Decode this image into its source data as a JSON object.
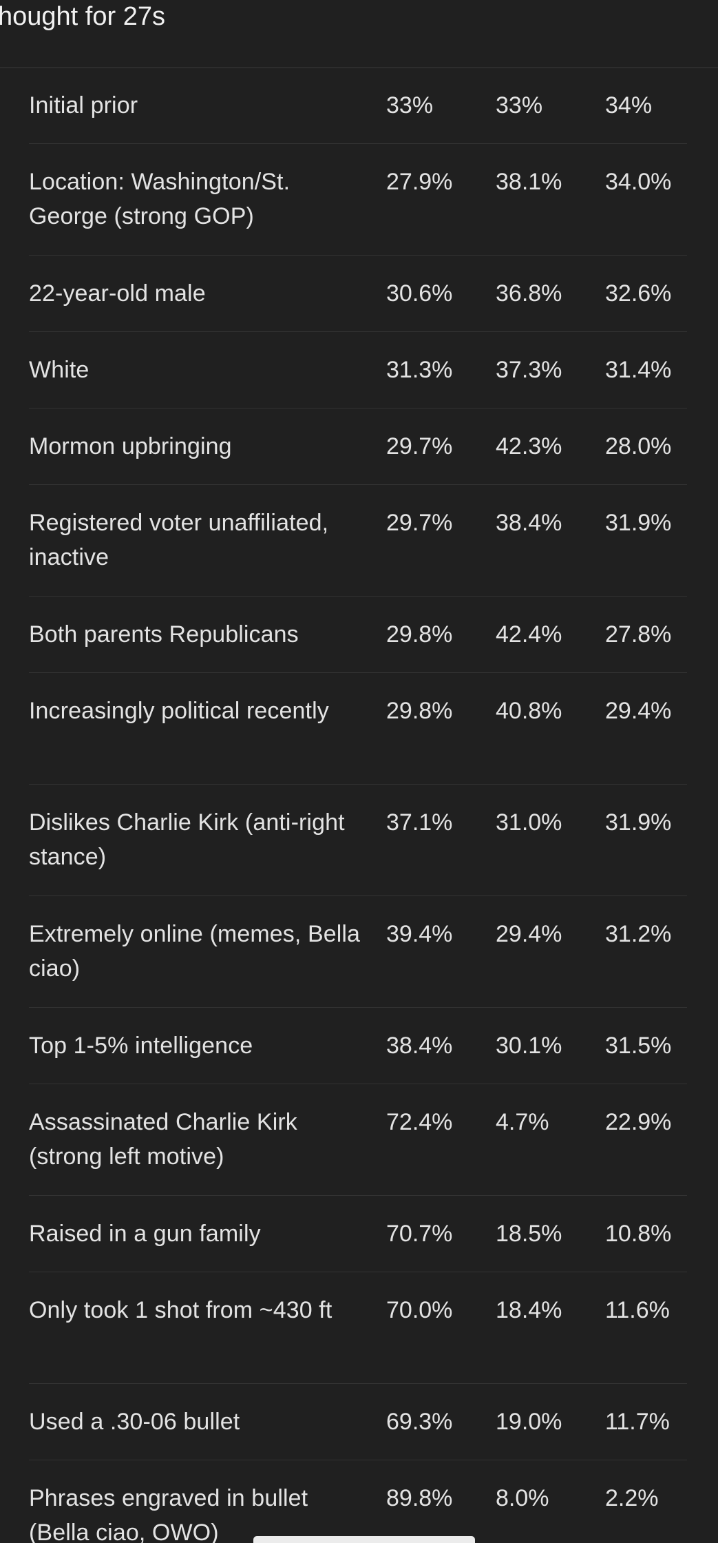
{
  "header": {
    "title": "hought for 27s"
  },
  "table": {
    "rows": [
      {
        "label": "Initial prior",
        "values": [
          "33%",
          "33%",
          "34%"
        ],
        "height": "short"
      },
      {
        "label": "Location: Washington/St. George (strong GOP)",
        "values": [
          "27.9%",
          "38.1%",
          "34.0%"
        ],
        "height": "tall"
      },
      {
        "label": "22-year-old male",
        "values": [
          "30.6%",
          "36.8%",
          "32.6%"
        ],
        "height": "short"
      },
      {
        "label": "White",
        "values": [
          "31.3%",
          "37.3%",
          "31.4%"
        ],
        "height": "short"
      },
      {
        "label": "Mormon upbringing",
        "values": [
          "29.7%",
          "42.3%",
          "28.0%"
        ],
        "height": "short"
      },
      {
        "label": "Registered voter unaffiliated, inactive",
        "values": [
          "29.7%",
          "38.4%",
          "31.9%"
        ],
        "height": "tall"
      },
      {
        "label": "Both parents Republicans",
        "values": [
          "29.8%",
          "42.4%",
          "27.8%"
        ],
        "height": "short"
      },
      {
        "label": "Increasingly political recently",
        "values": [
          "29.8%",
          "40.8%",
          "29.4%"
        ],
        "height": "tall"
      },
      {
        "label": "Dislikes Charlie Kirk (anti-right stance)",
        "values": [
          "37.1%",
          "31.0%",
          "31.9%"
        ],
        "height": "tall"
      },
      {
        "label": "Extremely online (memes, Bella ciao)",
        "values": [
          "39.4%",
          "29.4%",
          "31.2%"
        ],
        "height": "tall"
      },
      {
        "label": "Top 1-5% intelligence",
        "values": [
          "38.4%",
          "30.1%",
          "31.5%"
        ],
        "height": "short"
      },
      {
        "label": "Assassinated Charlie Kirk (strong left motive)",
        "values": [
          "72.4%",
          "4.7%",
          "22.9%"
        ],
        "height": "tall"
      },
      {
        "label": "Raised in a gun family",
        "values": [
          "70.7%",
          "18.5%",
          "10.8%"
        ],
        "height": "short"
      },
      {
        "label": "Only took 1 shot from ~430 ft",
        "values": [
          "70.0%",
          "18.4%",
          "11.6%"
        ],
        "height": "tall"
      },
      {
        "label": "Used a .30-06 bullet",
        "values": [
          "69.3%",
          "19.0%",
          "11.7%"
        ],
        "height": "short"
      },
      {
        "label": "Phrases engraved in bullet (Bella ciao, OWO)",
        "values": [
          "89.8%",
          "8.0%",
          "2.2%"
        ],
        "height": "last"
      }
    ]
  }
}
